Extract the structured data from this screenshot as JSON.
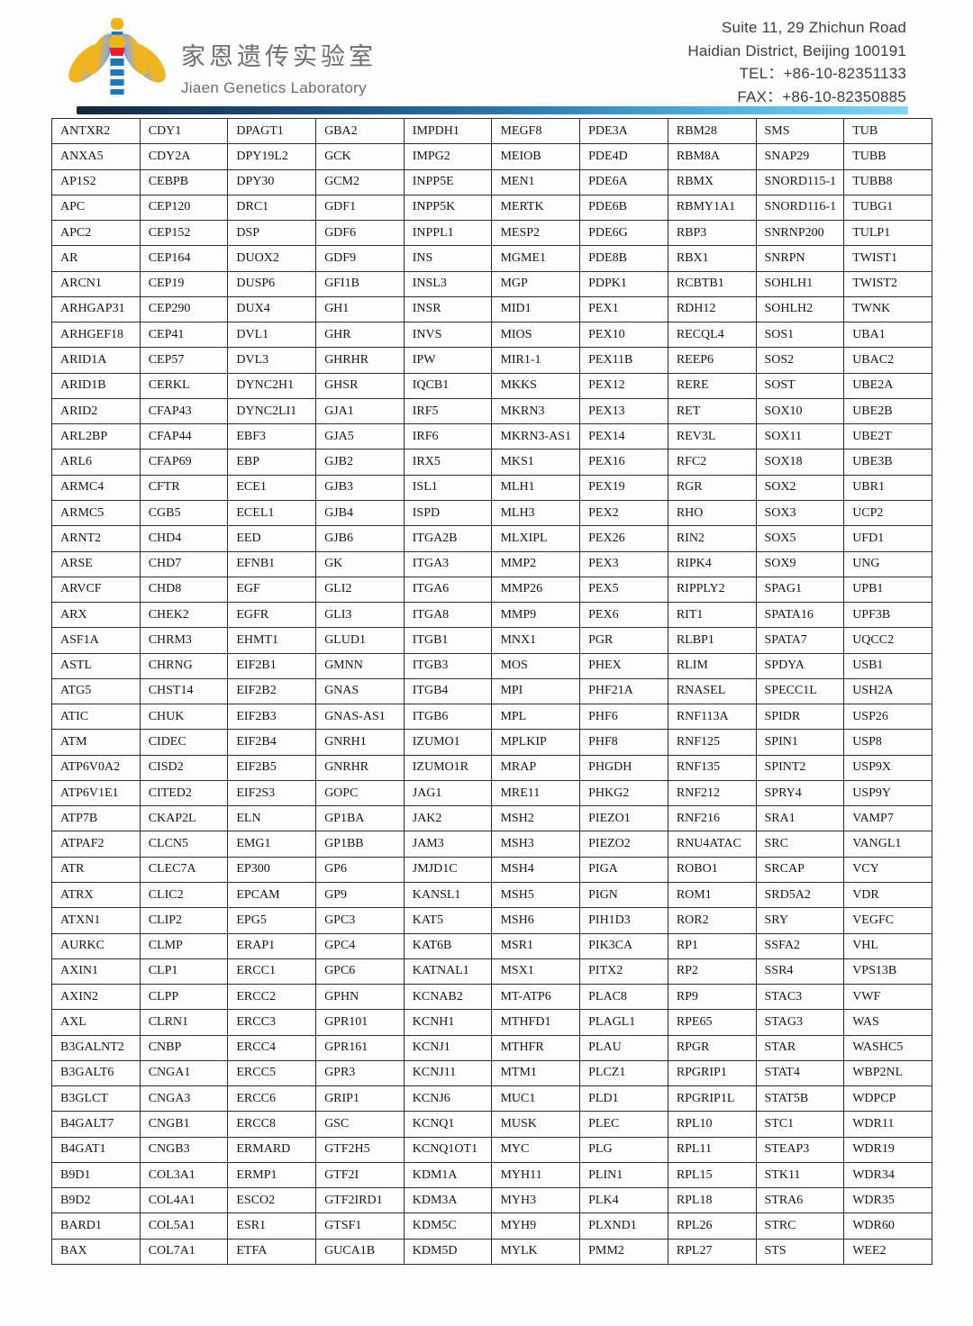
{
  "header": {
    "org_name_zh": "家恩遗传实验室",
    "org_name_en": "Jiaen Genetics Laboratory",
    "address_lines": [
      "Suite 11, 29 Zhichun Road",
      "Haidian District, Beijing 100191",
      "TEL：+86-10-82351133",
      "FAX：+86-10-82350885"
    ]
  },
  "colors": {
    "logo_gold": "#f0b51d",
    "logo_blue": "#1f78b5",
    "logo_red": "#e62129",
    "divider_dark": "#12273e",
    "divider_light": "#86d5f6",
    "table_border": "#2b2b2b",
    "text_gray": "#6e6e6e"
  },
  "gene_table": {
    "columns": 10,
    "rows": [
      [
        "ANTXR2",
        "CDY1",
        "DPAGT1",
        "GBA2",
        "IMPDH1",
        "MEGF8",
        "PDE3A",
        "RBM28",
        "SMS",
        "TUB"
      ],
      [
        "ANXA5",
        "CDY2A",
        "DPY19L2",
        "GCK",
        "IMPG2",
        "MEIOB",
        "PDE4D",
        "RBM8A",
        "SNAP29",
        "TUBB"
      ],
      [
        "AP1S2",
        "CEBPB",
        "DPY30",
        "GCM2",
        "INPP5E",
        "MEN1",
        "PDE6A",
        "RBMX",
        "SNORD115-1",
        "TUBB8"
      ],
      [
        "APC",
        "CEP120",
        "DRC1",
        "GDF1",
        "INPP5K",
        "MERTK",
        "PDE6B",
        "RBMY1A1",
        "SNORD116-1",
        "TUBG1"
      ],
      [
        "APC2",
        "CEP152",
        "DSP",
        "GDF6",
        "INPPL1",
        "MESP2",
        "PDE6G",
        "RBP3",
        "SNRNP200",
        "TULP1"
      ],
      [
        "AR",
        "CEP164",
        "DUOX2",
        "GDF9",
        "INS",
        "MGME1",
        "PDE8B",
        "RBX1",
        "SNRPN",
        "TWIST1"
      ],
      [
        "ARCN1",
        "CEP19",
        "DUSP6",
        "GFI1B",
        "INSL3",
        "MGP",
        "PDPK1",
        "RCBTB1",
        "SOHLH1",
        "TWIST2"
      ],
      [
        "ARHGAP31",
        "CEP290",
        "DUX4",
        "GH1",
        "INSR",
        "MID1",
        "PEX1",
        "RDH12",
        "SOHLH2",
        "TWNK"
      ],
      [
        "ARHGEF18",
        "CEP41",
        "DVL1",
        "GHR",
        "INVS",
        "MIOS",
        "PEX10",
        "RECQL4",
        "SOS1",
        "UBA1"
      ],
      [
        "ARID1A",
        "CEP57",
        "DVL3",
        "GHRHR",
        "IPW",
        "MIR1-1",
        "PEX11B",
        "REEP6",
        "SOS2",
        "UBAC2"
      ],
      [
        "ARID1B",
        "CERKL",
        "DYNC2H1",
        "GHSR",
        "IQCB1",
        "MKKS",
        "PEX12",
        "RERE",
        "SOST",
        "UBE2A"
      ],
      [
        "ARID2",
        "CFAP43",
        "DYNC2LI1",
        "GJA1",
        "IRF5",
        "MKRN3",
        "PEX13",
        "RET",
        "SOX10",
        "UBE2B"
      ],
      [
        "ARL2BP",
        "CFAP44",
        "EBF3",
        "GJA5",
        "IRF6",
        "MKRN3-AS1",
        "PEX14",
        "REV3L",
        "SOX11",
        "UBE2T"
      ],
      [
        "ARL6",
        "CFAP69",
        "EBP",
        "GJB2",
        "IRX5",
        "MKS1",
        "PEX16",
        "RFC2",
        "SOX18",
        "UBE3B"
      ],
      [
        "ARMC4",
        "CFTR",
        "ECE1",
        "GJB3",
        "ISL1",
        "MLH1",
        "PEX19",
        "RGR",
        "SOX2",
        "UBR1"
      ],
      [
        "ARMC5",
        "CGB5",
        "ECEL1",
        "GJB4",
        "ISPD",
        "MLH3",
        "PEX2",
        "RHO",
        "SOX3",
        "UCP2"
      ],
      [
        "ARNT2",
        "CHD4",
        "EED",
        "GJB6",
        "ITGA2B",
        "MLXIPL",
        "PEX26",
        "RIN2",
        "SOX5",
        "UFD1"
      ],
      [
        "ARSE",
        "CHD7",
        "EFNB1",
        "GK",
        "ITGA3",
        "MMP2",
        "PEX3",
        "RIPK4",
        "SOX9",
        "UNG"
      ],
      [
        "ARVCF",
        "CHD8",
        "EGF",
        "GLI2",
        "ITGA6",
        "MMP26",
        "PEX5",
        "RIPPLY2",
        "SPAG1",
        "UPB1"
      ],
      [
        "ARX",
        "CHEK2",
        "EGFR",
        "GLI3",
        "ITGA8",
        "MMP9",
        "PEX6",
        "RIT1",
        "SPATA16",
        "UPF3B"
      ],
      [
        "ASF1A",
        "CHRM3",
        "EHMT1",
        "GLUD1",
        "ITGB1",
        "MNX1",
        "PGR",
        "RLBP1",
        "SPATA7",
        "UQCC2"
      ],
      [
        "ASTL",
        "CHRNG",
        "EIF2B1",
        "GMNN",
        "ITGB3",
        "MOS",
        "PHEX",
        "RLIM",
        "SPDYA",
        "USB1"
      ],
      [
        "ATG5",
        "CHST14",
        "EIF2B2",
        "GNAS",
        "ITGB4",
        "MPI",
        "PHF21A",
        "RNASEL",
        "SPECC1L",
        "USH2A"
      ],
      [
        "ATIC",
        "CHUK",
        "EIF2B3",
        "GNAS-AS1",
        "ITGB6",
        "MPL",
        "PHF6",
        "RNF113A",
        "SPIDR",
        "USP26"
      ],
      [
        "ATM",
        "CIDEC",
        "EIF2B4",
        "GNRH1",
        "IZUMO1",
        "MPLKIP",
        "PHF8",
        "RNF125",
        "SPIN1",
        "USP8"
      ],
      [
        "ATP6V0A2",
        "CISD2",
        "EIF2B5",
        "GNRHR",
        "IZUMO1R",
        "MRAP",
        "PHGDH",
        "RNF135",
        "SPINT2",
        "USP9X"
      ],
      [
        "ATP6V1E1",
        "CITED2",
        "EIF2S3",
        "GOPC",
        "JAG1",
        "MRE11",
        "PHKG2",
        "RNF212",
        "SPRY4",
        "USP9Y"
      ],
      [
        "ATP7B",
        "CKAP2L",
        "ELN",
        "GP1BA",
        "JAK2",
        "MSH2",
        "PIEZO1",
        "RNF216",
        "SRA1",
        "VAMP7"
      ],
      [
        "ATPAF2",
        "CLCN5",
        "EMG1",
        "GP1BB",
        "JAM3",
        "MSH3",
        "PIEZO2",
        "RNU4ATAC",
        "SRC",
        "VANGL1"
      ],
      [
        "ATR",
        "CLEC7A",
        "EP300",
        "GP6",
        "JMJD1C",
        "MSH4",
        "PIGA",
        "ROBO1",
        "SRCAP",
        "VCY"
      ],
      [
        "ATRX",
        "CLIC2",
        "EPCAM",
        "GP9",
        "KANSL1",
        "MSH5",
        "PIGN",
        "ROM1",
        "SRD5A2",
        "VDR"
      ],
      [
        "ATXN1",
        "CLIP2",
        "EPG5",
        "GPC3",
        "KAT5",
        "MSH6",
        "PIH1D3",
        "ROR2",
        "SRY",
        "VEGFC"
      ],
      [
        "AURKC",
        "CLMP",
        "ERAP1",
        "GPC4",
        "KAT6B",
        "MSR1",
        "PIK3CA",
        "RP1",
        "SSFA2",
        "VHL"
      ],
      [
        "AXIN1",
        "CLP1",
        "ERCC1",
        "GPC6",
        "KATNAL1",
        "MSX1",
        "PITX2",
        "RP2",
        "SSR4",
        "VPS13B"
      ],
      [
        "AXIN2",
        "CLPP",
        "ERCC2",
        "GPHN",
        "KCNAB2",
        "MT-ATP6",
        "PLAC8",
        "RP9",
        "STAC3",
        "VWF"
      ],
      [
        "AXL",
        "CLRN1",
        "ERCC3",
        "GPR101",
        "KCNH1",
        "MTHFD1",
        "PLAGL1",
        "RPE65",
        "STAG3",
        "WAS"
      ],
      [
        "B3GALNT2",
        "CNBP",
        "ERCC4",
        "GPR161",
        "KCNJ1",
        "MTHFR",
        "PLAU",
        "RPGR",
        "STAR",
        "WASHC5"
      ],
      [
        "B3GALT6",
        "CNGA1",
        "ERCC5",
        "GPR3",
        "KCNJ11",
        "MTM1",
        "PLCZ1",
        "RPGRIP1",
        "STAT4",
        "WBP2NL"
      ],
      [
        "B3GLCT",
        "CNGA3",
        "ERCC6",
        "GRIP1",
        "KCNJ6",
        "MUC1",
        "PLD1",
        "RPGRIP1L",
        "STAT5B",
        "WDPCP"
      ],
      [
        "B4GALT7",
        "CNGB1",
        "ERCC8",
        "GSC",
        "KCNQ1",
        "MUSK",
        "PLEC",
        "RPL10",
        "STC1",
        "WDR11"
      ],
      [
        "B4GAT1",
        "CNGB3",
        "ERMARD",
        "GTF2H5",
        "KCNQ1OT1",
        "MYC",
        "PLG",
        "RPL11",
        "STEAP3",
        "WDR19"
      ],
      [
        "B9D1",
        "COL3A1",
        "ERMP1",
        "GTF2I",
        "KDM1A",
        "MYH11",
        "PLIN1",
        "RPL15",
        "STK11",
        "WDR34"
      ],
      [
        "B9D2",
        "COL4A1",
        "ESCO2",
        "GTF2IRD1",
        "KDM3A",
        "MYH3",
        "PLK4",
        "RPL18",
        "STRA6",
        "WDR35"
      ],
      [
        "BARD1",
        "COL5A1",
        "ESR1",
        "GTSF1",
        "KDM5C",
        "MYH9",
        "PLXND1",
        "RPL26",
        "STRC",
        "WDR60"
      ],
      [
        "BAX",
        "COL7A1",
        "ETFA",
        "GUCA1B",
        "KDM5D",
        "MYLK",
        "PMM2",
        "RPL27",
        "STS",
        "WEE2"
      ]
    ]
  }
}
